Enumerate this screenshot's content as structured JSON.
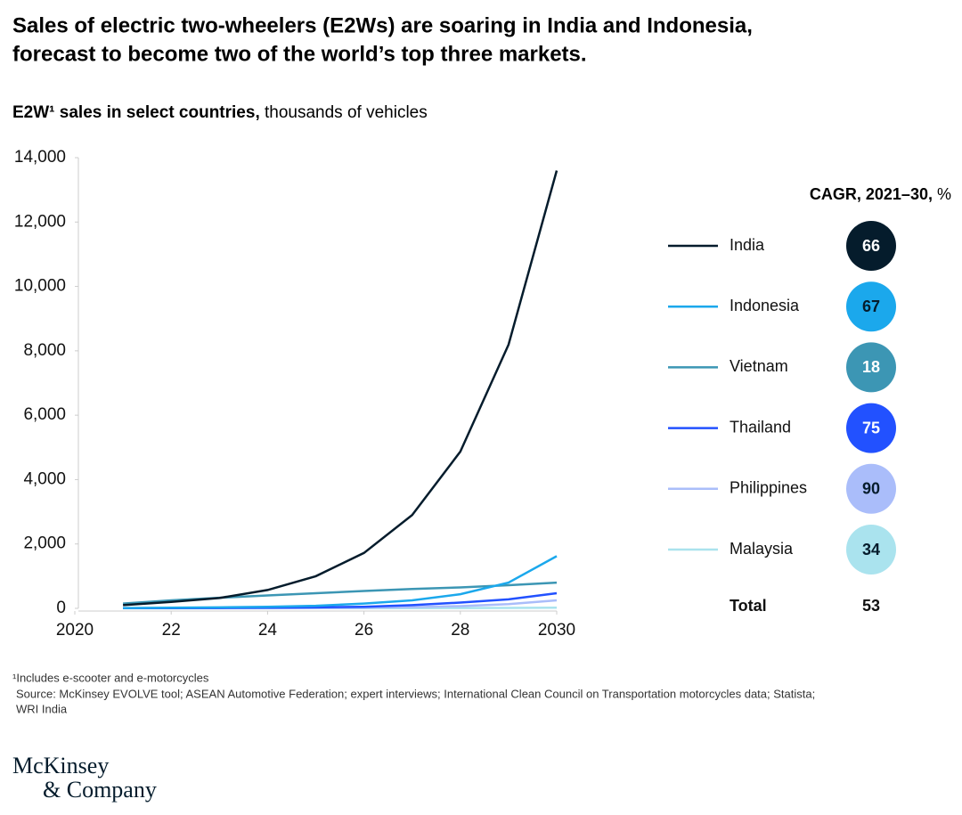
{
  "chart_data": {
    "type": "line",
    "title": [
      "Sales of electric two-wheelers (E2Ws) are soaring in India and Indonesia,",
      "forecast to become two of the world’s top three markets."
    ],
    "subtitle_bold": "E2W¹ sales in select countries,",
    "subtitle": "thousands of vehicles",
    "x": [
      2021,
      2022,
      2023,
      2024,
      2025,
      2026,
      2027,
      2028,
      2029,
      2030
    ],
    "xlim": [
      2020,
      2030
    ],
    "xticks": [
      2020,
      {
        "value": 2022,
        "label": "22"
      },
      {
        "value": 2024,
        "label": "24"
      },
      {
        "value": 2026,
        "label": "26"
      },
      {
        "value": 2028,
        "label": "28"
      },
      2030
    ],
    "ylim": [
      0,
      14000
    ],
    "yticks": [
      0,
      {
        "value": 2000,
        "label": "2,000"
      },
      {
        "value": 4000,
        "label": "4,000"
      },
      {
        "value": 6000,
        "label": "6,000"
      },
      {
        "value": 8000,
        "label": "8,000"
      },
      {
        "value": 10000,
        "label": "10,000"
      },
      {
        "value": 12000,
        "label": "12,000"
      },
      {
        "value": 14000,
        "label": "14,000"
      }
    ],
    "legend_title_bold": "CAGR, 2021–30,",
    "legend_title": "%",
    "series": [
      {
        "name": "India",
        "color": "#051c2c",
        "cagr": 66,
        "values": [
          100,
          200,
          320,
          570,
          1000,
          1720,
          2900,
          4870,
          8190,
          13600
        ]
      },
      {
        "name": "Indonesia",
        "color": "#1ba8ec",
        "cagr": 67,
        "values": [
          10,
          20,
          30,
          50,
          80,
          150,
          250,
          440,
          800,
          1620
        ]
      },
      {
        "name": "Vietnam",
        "color": "#3c96b4",
        "cagr": 18,
        "values": [
          150,
          250,
          330,
          400,
          470,
          540,
          600,
          650,
          720,
          800
        ]
      },
      {
        "name": "Thailand",
        "color": "#2251ff",
        "cagr": 75,
        "values": [
          5,
          8,
          10,
          20,
          30,
          50,
          100,
          180,
          280,
          470
        ]
      },
      {
        "name": "Philippines",
        "color": "#aabdfa",
        "cagr": 90,
        "values": [
          5,
          5,
          6,
          8,
          10,
          20,
          40,
          70,
          130,
          250
        ]
      },
      {
        "name": "Malaysia",
        "color": "#aae3ee",
        "cagr": 34,
        "values": [
          2,
          3,
          3,
          4,
          5,
          6,
          8,
          10,
          14,
          20
        ]
      }
    ],
    "total": {
      "label": "Total",
      "cagr": 53
    },
    "footnote": "¹Includes e-scooter and e-motorcycles",
    "source": [
      "Source: McKinsey EVOLVE tool; ASEAN Automotive Federation; expert interviews; International Clean Council on Transportation motorcycles data; Statista;",
      "WRI India"
    ],
    "logo": [
      "McKinsey",
      "& Company"
    ]
  }
}
